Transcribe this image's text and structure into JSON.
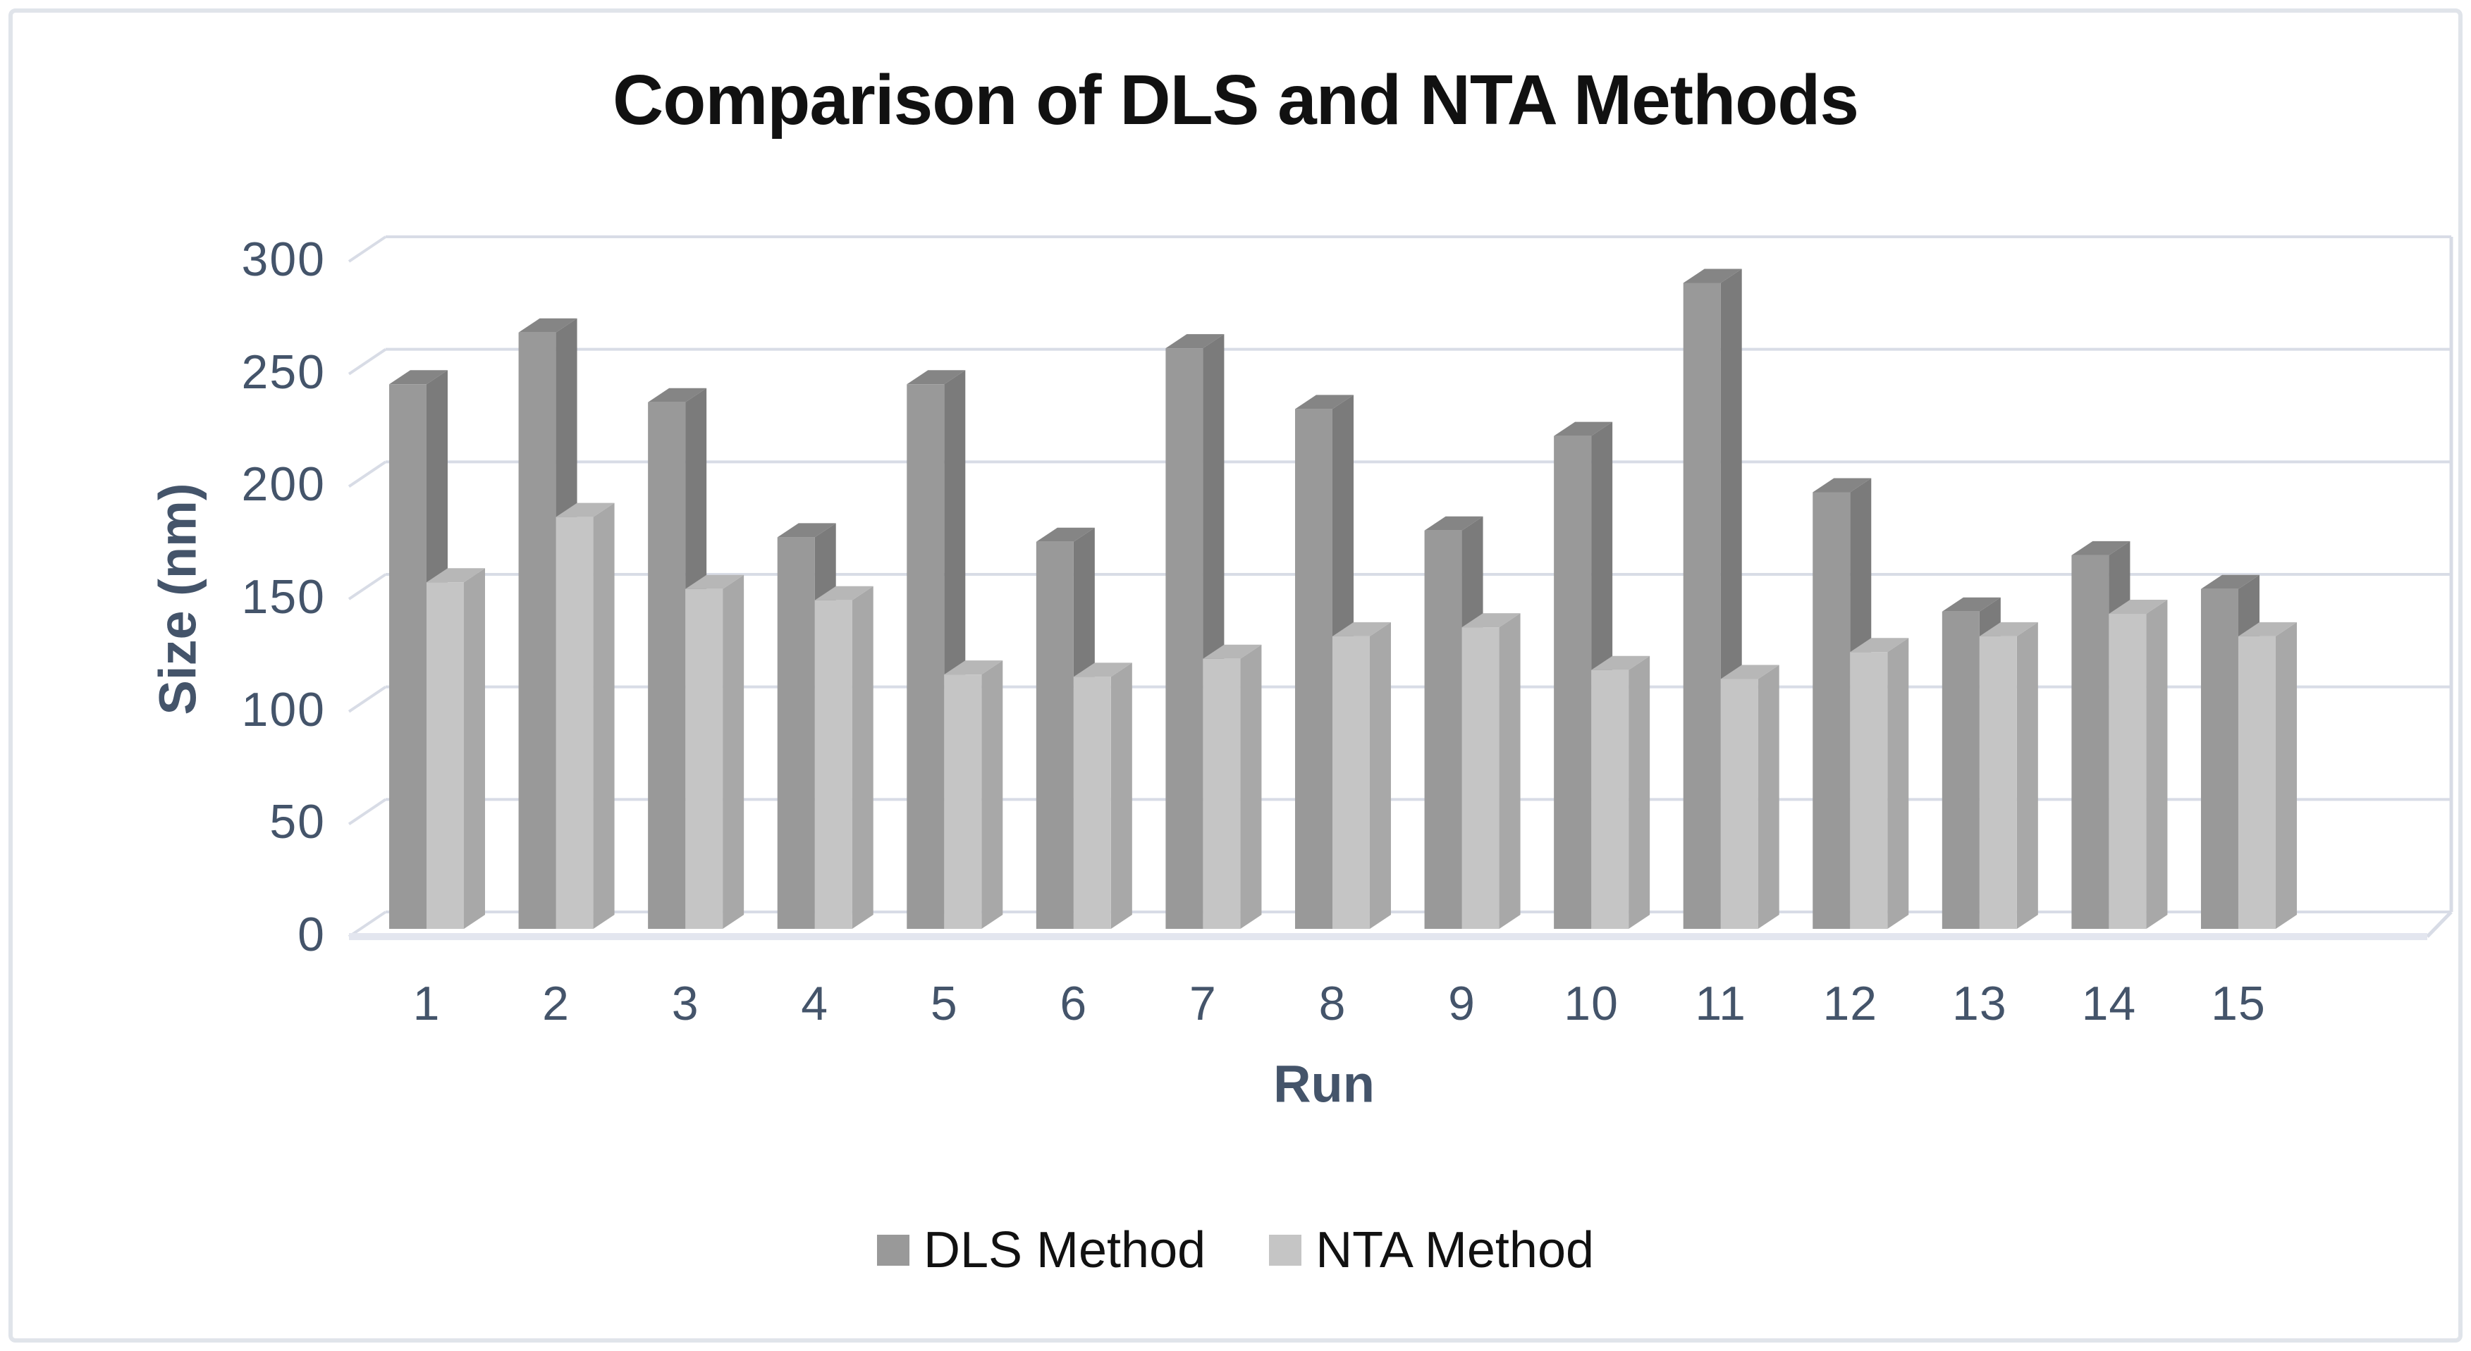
{
  "window": {
    "background": "#ffffff",
    "border_color": "#e0e4ea"
  },
  "chart_data": {
    "type": "bar",
    "style": "3d-clustered-column",
    "title": "Comparison of DLS and NTA Methods",
    "xlabel": "Run",
    "ylabel": "Size (nm)",
    "categories": [
      "1",
      "2",
      "3",
      "4",
      "5",
      "6",
      "7",
      "8",
      "9",
      "10",
      "11",
      "12",
      "13",
      "14",
      "15"
    ],
    "series": [
      {
        "name": "DLS Method",
        "values": [
          242,
          265,
          234,
          174,
          242,
          172,
          258,
          231,
          177,
          219,
          287,
          194,
          141,
          166,
          151
        ],
        "color": "#999999",
        "side_color": "#7b7b7b",
        "top_color": "#858585"
      },
      {
        "name": "NTA Method",
        "values": [
          154,
          183,
          151,
          146,
          113,
          112,
          120,
          130,
          134,
          115,
          111,
          123,
          130,
          140,
          130
        ],
        "color": "#c5c5c5",
        "side_color": "#a8a8a8",
        "top_color": "#b7b7b7"
      }
    ],
    "ylim": [
      0,
      300
    ],
    "yticks": [
      0,
      50,
      100,
      150,
      200,
      250,
      300
    ],
    "grid": true,
    "legend_position": "bottom",
    "gridline_color": "#d8dce6",
    "axis_line_color": "#e3e6ef",
    "tick_color": "#44546A",
    "axis_title_color": "#44546A",
    "title_color": "#111111",
    "legend_text_color": "#111111"
  }
}
